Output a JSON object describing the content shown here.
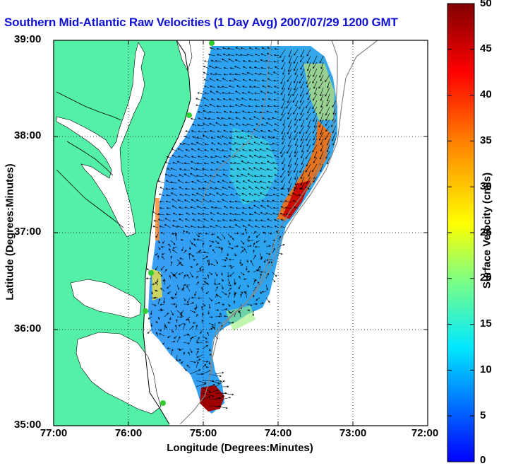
{
  "title": "Southern Mid-Atlantic Raw Velocities (1 Day Avg) 2007/07/29 1200 GMT",
  "x_axis": {
    "label": "Longitude (Degrees:Minutes)",
    "ticks": [
      "77:00",
      "76:00",
      "75:00",
      "74:00",
      "73:00",
      "72:00"
    ]
  },
  "y_axis": {
    "label": "Latitude (Degrees:Minutes)",
    "ticks": [
      "39:00",
      "38:00",
      "37:00",
      "36:00",
      "35:00"
    ]
  },
  "colorbar": {
    "label": "Surface Velocity (cm/s)",
    "ticks": [
      "50",
      "45",
      "40",
      "35",
      "30",
      "25",
      "20",
      "15",
      "10",
      "5",
      "0"
    ],
    "min": 0,
    "max": 50,
    "colors": [
      "#0000ff",
      "#0080ff",
      "#00ffff",
      "#80ff80",
      "#ffff00",
      "#ff8000",
      "#ff0000",
      "#800000"
    ]
  },
  "colors": {
    "land": "#54f0a8",
    "title": "#1010d0",
    "grid": "#000000",
    "isobath": "#888888",
    "stations": "#33cc33"
  }
}
